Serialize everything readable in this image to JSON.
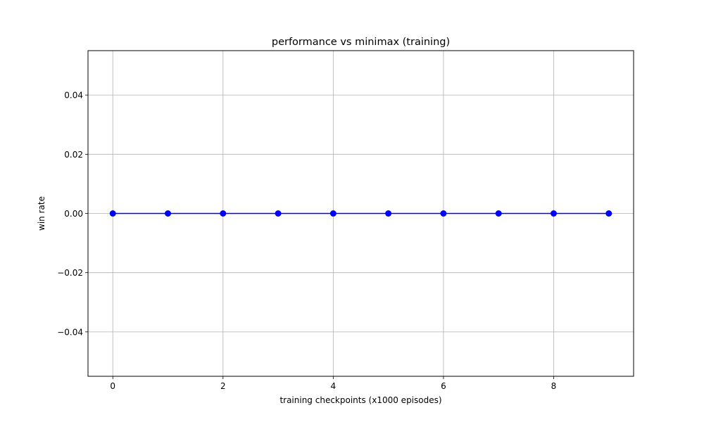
{
  "chart_data": {
    "type": "line",
    "title": "performance vs minimax (training)",
    "xlabel": "training checkpoints (x1000 episodes)",
    "ylabel": "win rate",
    "xlim": [
      -0.45,
      9.45
    ],
    "ylim": [
      -0.055,
      0.055
    ],
    "xticks": [
      0,
      2,
      4,
      6,
      8
    ],
    "xtick_labels": [
      "0",
      "2",
      "4",
      "6",
      "8"
    ],
    "yticks": [
      -0.04,
      -0.02,
      0.0,
      0.02,
      0.04
    ],
    "ytick_labels": [
      "−0.04",
      "−0.02",
      "0.00",
      "0.02",
      "0.04"
    ],
    "grid": true,
    "series": [
      {
        "color": "#0000ff",
        "marker": "circle",
        "x": [
          0,
          1,
          2,
          3,
          4,
          5,
          6,
          7,
          8,
          9
        ],
        "y": [
          0,
          0,
          0,
          0,
          0,
          0,
          0,
          0,
          0,
          0
        ]
      }
    ]
  }
}
